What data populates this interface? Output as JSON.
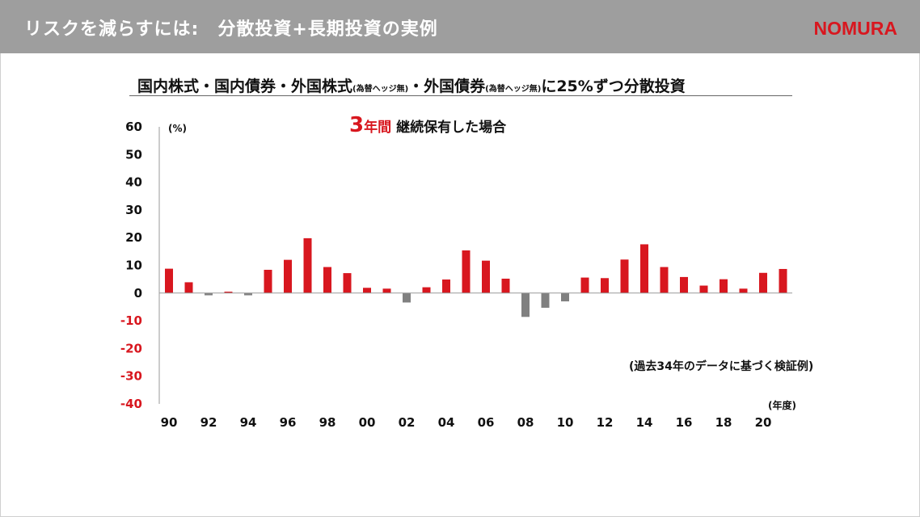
{
  "header": {
    "title": "リスクを減らすには:　分散投資+長期投資の実例",
    "logo": "NOMURA"
  },
  "subtitle": {
    "part1": "国内株式・国内債券・外国株式",
    "small1": "(為替ヘッジ無)",
    "part2": "・外国債券",
    "small2": "(為替ヘッジ無)",
    "part3": "に25%ずつ分散投資"
  },
  "period": {
    "years": "3",
    "years_unit": "年間",
    "text": "継続保有した場合"
  },
  "note": "(過去34年のデータに基づく検証例)",
  "colors": {
    "header_bg": "#9e9e9e",
    "brand_red": "#d8171f",
    "positive_bar": "#d8171f",
    "negative_bar": "#808080",
    "negative_tick": "#d8171f"
  },
  "chart_data": {
    "type": "bar",
    "y_unit": "(%)",
    "x_unit": "(年度)",
    "ylim": [
      -40,
      60
    ],
    "yticks": [
      60,
      50,
      40,
      30,
      20,
      10,
      0,
      -10,
      -20,
      -30,
      -40
    ],
    "xtick_labels": [
      "90",
      "92",
      "94",
      "96",
      "98",
      "00",
      "02",
      "04",
      "06",
      "08",
      "10",
      "12",
      "14",
      "16",
      "18",
      "20"
    ],
    "categories": [
      "1990",
      "1991",
      "1992",
      "1993",
      "1994",
      "1995",
      "1996",
      "1997",
      "1998",
      "1999",
      "2000",
      "2001",
      "2002",
      "2003",
      "2004",
      "2005",
      "2006",
      "2007",
      "2008",
      "2009",
      "2010",
      "2011",
      "2012",
      "2013",
      "2014",
      "2015",
      "2016",
      "2017",
      "2018",
      "2019",
      "2020",
      "2021"
    ],
    "values": [
      8.8,
      3.9,
      -0.8,
      0.5,
      -0.8,
      8.4,
      12.0,
      19.8,
      9.4,
      7.2,
      1.9,
      1.6,
      -3.4,
      2.1,
      4.9,
      15.4,
      11.7,
      5.2,
      -8.6,
      -5.3,
      -3.0,
      5.6,
      5.4,
      12.1,
      17.6,
      9.4,
      5.8,
      2.7,
      5.0,
      1.6,
      7.3,
      8.7
    ],
    "grid": false
  }
}
